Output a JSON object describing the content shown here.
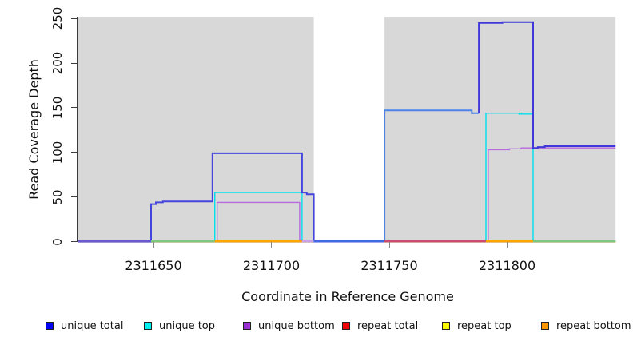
{
  "chart_data": {
    "type": "step-line",
    "title": "",
    "xlabel": "Coordinate in Reference Genome",
    "ylabel": "Read Coverage Depth",
    "x_ticks": [
      2311650,
      2311700,
      2311750,
      2311800
    ],
    "y_ticks": [
      0,
      50,
      100,
      150,
      200,
      250
    ],
    "ylim": [
      0,
      250
    ],
    "xlim": [
      2311618,
      2311846
    ],
    "grid": "off",
    "legend_position": "bottom",
    "background_shading": {
      "color": "#d8d8d8",
      "regions": [
        [
          2311618,
          2311718
        ],
        [
          2311748,
          2311846
        ]
      ]
    },
    "series": [
      {
        "name": "repeat total",
        "color": "#e00000",
        "width": 1.2,
        "segments": [
          {
            "points": [
              [
                2311618,
                0
              ],
              [
                2311846,
                0
              ]
            ]
          }
        ]
      },
      {
        "name": "repeat top",
        "color": "#f5f500",
        "width": 1.2,
        "segments": [
          {
            "points": [
              [
                2311618,
                0
              ],
              [
                2311846,
                0
              ]
            ]
          }
        ]
      },
      {
        "name": "repeat bottom",
        "color": "#ff9800",
        "width": 1.2,
        "segments": [
          {
            "points": [
              [
                2311618,
                0
              ],
              [
                2311846,
                0
              ]
            ]
          }
        ]
      },
      {
        "name": "unique bottom",
        "color": "#b56ae0",
        "width": 1.4,
        "segments": [
          {
            "points": [
              [
                2311677,
                0
              ],
              [
                2311677,
                44
              ],
              [
                2311712,
                44
              ],
              [
                2311712,
                0
              ]
            ]
          },
          {
            "points": [
              [
                2311792,
                0
              ],
              [
                2311792,
                103
              ],
              [
                2311801,
                103
              ],
              [
                2311801,
                104
              ],
              [
                2311806,
                104
              ],
              [
                2311806,
                105
              ],
              [
                2311846,
                105
              ]
            ]
          }
        ]
      },
      {
        "name": "unique top",
        "color": "#00dfee",
        "width": 1.4,
        "segments": [
          {
            "points": [
              [
                2311676,
                0
              ],
              [
                2311676,
                55
              ],
              [
                2311713,
                55
              ],
              [
                2311713,
                0
              ]
            ]
          },
          {
            "points": [
              [
                2311791,
                0
              ],
              [
                2311791,
                144
              ],
              [
                2311805,
                144
              ],
              [
                2311805,
                143
              ],
              [
                2311811,
                143
              ],
              [
                2311811,
                0
              ]
            ]
          }
        ]
      },
      {
        "name": "unique total",
        "color": "#4545de",
        "width": 2,
        "segments": [
          {
            "color": "#4545de",
            "points": [
              [
                2311618,
                0
              ],
              [
                2311649,
                0
              ],
              [
                2311649,
                42
              ],
              [
                2311651,
                42
              ],
              [
                2311651,
                44
              ],
              [
                2311654,
                44
              ],
              [
                2311654,
                45
              ],
              [
                2311675,
                45
              ],
              [
                2311675,
                99
              ],
              [
                2311713,
                99
              ],
              [
                2311713,
                55
              ],
              [
                2311715,
                55
              ],
              [
                2311715,
                53
              ],
              [
                2311718,
                53
              ],
              [
                2311718,
                0
              ],
              [
                2311748,
                0
              ]
            ]
          },
          {
            "color": "#4d82e8",
            "points": [
              [
                2311748,
                0
              ],
              [
                2311748,
                147
              ],
              [
                2311785,
                147
              ],
              [
                2311785,
                144
              ],
              [
                2311788,
                144
              ]
            ]
          },
          {
            "color": "#4038d8",
            "points": [
              [
                2311788,
                144
              ],
              [
                2311788,
                245
              ],
              [
                2311798,
                245
              ],
              [
                2311798,
                246
              ],
              [
                2311811,
                246
              ],
              [
                2311811,
                105
              ],
              [
                2311813,
                105
              ],
              [
                2311813,
                106
              ],
              [
                2311816,
                106
              ],
              [
                2311816,
                107
              ],
              [
                2311846,
                107
              ]
            ]
          }
        ]
      }
    ],
    "baseline_segments": [
      {
        "from": 2311618,
        "to": 2311649,
        "color": "#6a5acd"
      },
      {
        "from": 2311649,
        "to": 2311676,
        "color": "#7cc87c"
      },
      {
        "from": 2311676,
        "to": 2311713,
        "color": "#ffa500"
      },
      {
        "from": 2311713,
        "to": 2311718,
        "color": "#c8a2e8"
      },
      {
        "from": 2311718,
        "to": 2311748,
        "color": "#4169e1"
      },
      {
        "from": 2311748,
        "to": 2311791,
        "color": "#cb4b72"
      },
      {
        "from": 2311791,
        "to": 2311811,
        "color": "#ffa500"
      },
      {
        "from": 2311811,
        "to": 2311846,
        "color": "#7cc87c"
      }
    ],
    "legend": [
      {
        "label": "unique total",
        "color": "#0000f0"
      },
      {
        "label": "unique top",
        "color": "#00f0f0"
      },
      {
        "label": "unique bottom",
        "color": "#9b30d0"
      },
      {
        "label": "repeat total",
        "color": "#f00000"
      },
      {
        "label": "repeat top",
        "color": "#fafa00"
      },
      {
        "label": "repeat bottom",
        "color": "#ff9800"
      }
    ]
  }
}
